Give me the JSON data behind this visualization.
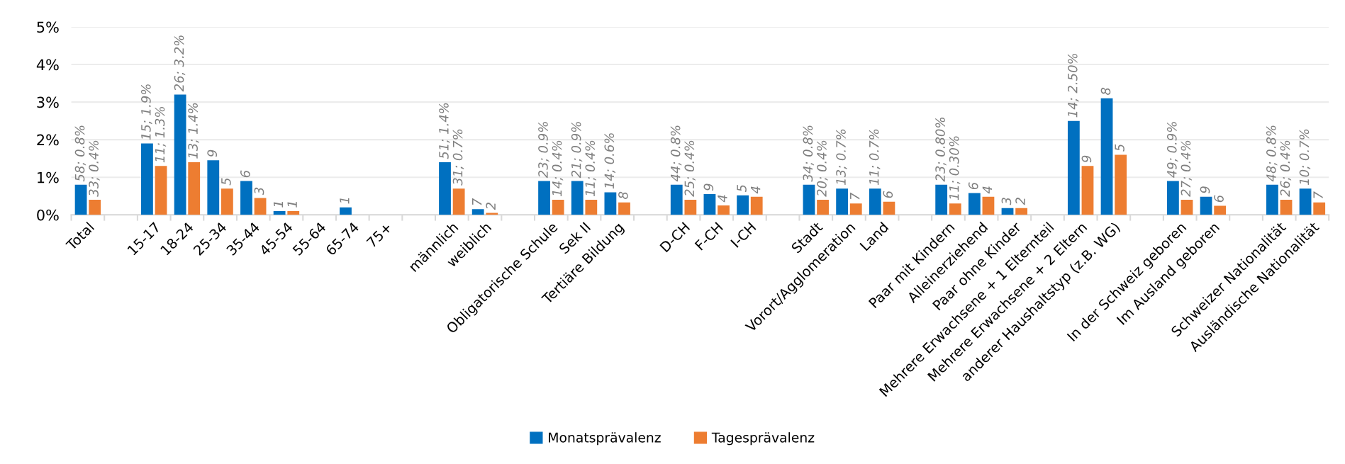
{
  "chart_data": {
    "type": "bar",
    "categories": [
      "Total",
      null,
      "15-17",
      "18-24",
      "25-34",
      "35-44",
      "45-54",
      "55-64",
      "65-74",
      "75+",
      null,
      "männlich",
      "weiblich",
      null,
      "Obligatorische Schule",
      "Sek II",
      "Tertiäre Bildung",
      null,
      "D-CH",
      "F-CH",
      "I-CH",
      null,
      "Stadt",
      "Vorort/Agglomeration",
      "Land",
      null,
      "Paar mit Kindern",
      "Alleinerziehend",
      "Paar ohne Kinder",
      "Mehrere Erwachsene + 1 Elternteil",
      "Mehrere Erwachsene + 2 Eltern",
      "anderer Haushaltstyp (z.B. WG)",
      null,
      "In der Schweiz geboren",
      "Im Ausland geboren",
      null,
      "Schweizer Nationalität",
      "Ausländische Nationalität"
    ],
    "series": [
      {
        "name": "Monatsprävalenz",
        "color": "#0070c0",
        "values": [
          0.8,
          null,
          1.9,
          3.2,
          1.45,
          0.9,
          0.1,
          null,
          0.2,
          null,
          null,
          1.4,
          0.15,
          null,
          0.9,
          0.9,
          0.6,
          null,
          0.8,
          0.55,
          0.52,
          null,
          0.8,
          0.7,
          0.7,
          null,
          0.8,
          0.58,
          0.18,
          null,
          2.5,
          3.1,
          null,
          0.9,
          0.48,
          null,
          0.8,
          0.7
        ]
      },
      {
        "name": "Tagesprävalenz",
        "color": "#ed7d31",
        "values": [
          0.4,
          null,
          1.3,
          1.4,
          0.7,
          0.45,
          0.1,
          null,
          null,
          null,
          null,
          0.7,
          0.05,
          null,
          0.4,
          0.4,
          0.33,
          null,
          0.4,
          0.25,
          0.48,
          null,
          0.4,
          0.3,
          0.35,
          null,
          0.3,
          0.48,
          0.18,
          null,
          1.3,
          1.6,
          null,
          0.4,
          0.24,
          null,
          0.4,
          0.33
        ]
      }
    ],
    "annotations": [
      {
        "text": "58; 0.8%",
        "x": "Total",
        "y": 0.8
      },
      {
        "text": "33; 0.4%",
        "x": "Total",
        "y": 0.4
      },
      {
        "text": "15; 1.9%",
        "x": "15-17",
        "y": 1.9
      },
      {
        "text": "11; 1.3%",
        "x": "15-17",
        "y": 1.3
      },
      {
        "text": "26; 3.2%",
        "x": "18-24",
        "y": 3.2
      },
      {
        "text": "13; 1.4%",
        "x": "18-24",
        "y": 1.4
      },
      {
        "text": "9",
        "x": "25-34",
        "y": 1.45
      },
      {
        "text": "5",
        "x": "25-34",
        "y": 0.7
      },
      {
        "text": "6",
        "x": "35-44",
        "y": 0.9
      },
      {
        "text": "3",
        "x": "35-44",
        "y": 0.45
      },
      {
        "text": "1",
        "x": "45-54",
        "y": 0.1
      },
      {
        "text": "1",
        "x": "45-54",
        "y": 0.1
      },
      {
        "text": "1",
        "x": "65-74",
        "y": 0.2
      },
      {
        "text": "51; 1.4%",
        "x": "männlich",
        "y": 1.4
      },
      {
        "text": "31; 0.7%",
        "x": "männlich",
        "y": 0.7
      },
      {
        "text": "7",
        "x": "weiblich",
        "y": 0.15
      },
      {
        "text": "2",
        "x": "weiblich",
        "y": 0.05
      },
      {
        "text": "23; 0.9%",
        "x": "Obligatorische Schule",
        "y": 0.9
      },
      {
        "text": "14; 0.4%",
        "x": "Obligatorische Schule",
        "y": 0.4
      },
      {
        "text": "21; 0.9%",
        "x": "Sek II",
        "y": 0.9
      },
      {
        "text": "11; 0.4%",
        "x": "Sek II",
        "y": 0.4
      },
      {
        "text": "14; 0.6%",
        "x": "Tertiäre Bildung",
        "y": 0.6
      },
      {
        "text": "8",
        "x": "Tertiäre Bildung",
        "y": 0.33
      },
      {
        "text": "44; 0.8%",
        "x": "D-CH",
        "y": 0.8
      },
      {
        "text": "25; 0.4%",
        "x": "D-CH",
        "y": 0.4
      },
      {
        "text": "9",
        "x": "F-CH",
        "y": 0.55
      },
      {
        "text": "4",
        "x": "F-CH",
        "y": 0.25
      },
      {
        "text": "5",
        "x": "I-CH",
        "y": 0.52
      },
      {
        "text": "4",
        "x": "I-CH",
        "y": 0.48
      },
      {
        "text": "34; 0.8%",
        "x": "Stadt",
        "y": 0.8
      },
      {
        "text": "20; 0.4%",
        "x": "Stadt",
        "y": 0.4
      },
      {
        "text": "13; 0.7%",
        "x": "Vorort/Agglomeration",
        "y": 0.7
      },
      {
        "text": "7",
        "x": "Vorort/Agglomeration",
        "y": 0.3
      },
      {
        "text": "11; 0.7%",
        "x": "Land",
        "y": 0.7
      },
      {
        "text": "6",
        "x": "Land",
        "y": 0.35
      },
      {
        "text": "23; 0.80%",
        "x": "Paar mit Kindern",
        "y": 0.8
      },
      {
        "text": "11; 0.30%",
        "x": "Paar mit Kindern",
        "y": 0.3
      },
      {
        "text": "6",
        "x": "Alleinerziehend",
        "y": 0.58
      },
      {
        "text": "4",
        "x": "Alleinerziehend",
        "y": 0.48
      },
      {
        "text": "3",
        "x": "Paar ohne Kinder",
        "y": 0.18
      },
      {
        "text": "2",
        "x": "Paar ohne Kinder",
        "y": 0.18
      },
      {
        "text": "14; 2.50%",
        "x": "Mehrere Erwachsene + 2 Eltern",
        "y": 2.5
      },
      {
        "text": "9",
        "x": "Mehrere Erwachsene + 2 Eltern",
        "y": 1.3
      },
      {
        "text": "8",
        "x": "anderer Haushaltstyp (z.B. WG)",
        "y": 3.1
      },
      {
        "text": "5",
        "x": "anderer Haushaltstyp (z.B. WG)",
        "y": 1.6
      },
      {
        "text": "49; 0.9%",
        "x": "In der Schweiz geboren",
        "y": 0.9
      },
      {
        "text": "27; 0.4%",
        "x": "In der Schweiz geboren",
        "y": 0.4
      },
      {
        "text": "9",
        "x": "Im Ausland geboren",
        "y": 0.48
      },
      {
        "text": "6",
        "x": "Im Ausland geboren",
        "y": 0.24
      },
      {
        "text": "48; 0.8%",
        "x": "Schweizer Nationalität",
        "y": 0.8
      },
      {
        "text": "26; 0.4%",
        "x": "Schweizer Nationalität",
        "y": 0.4
      },
      {
        "text": "10; 0.7%",
        "x": "Ausländische Nationalität",
        "y": 0.7
      },
      {
        "text": "7",
        "x": "Ausländische Nationalität",
        "y": 0.33
      }
    ],
    "ylim": [
      0,
      5
    ],
    "yticks": [
      {
        "value": 0,
        "label": "0%"
      },
      {
        "value": 1,
        "label": "1%"
      },
      {
        "value": 2,
        "label": "2%"
      },
      {
        "value": 3,
        "label": "3%"
      },
      {
        "value": 4,
        "label": "4%"
      },
      {
        "value": 5,
        "label": "5%"
      }
    ],
    "grid": "y",
    "legend": "bottom"
  }
}
